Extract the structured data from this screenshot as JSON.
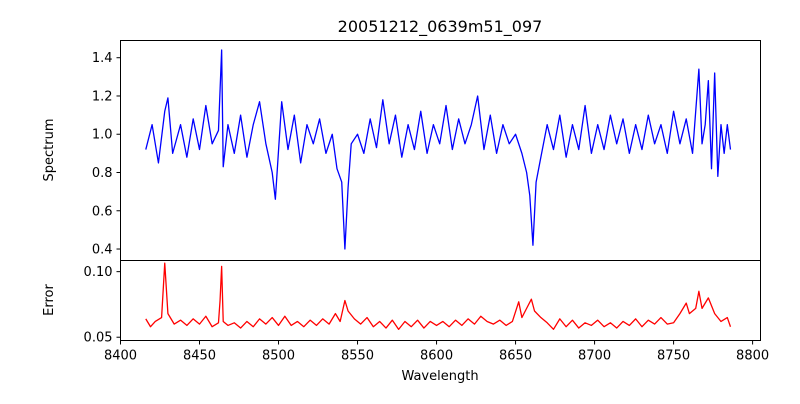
{
  "chart_data": [
    {
      "type": "line",
      "title": "20051212_0639m51_097",
      "ylabel": "Spectrum",
      "xlim": [
        8400,
        8805
      ],
      "ylim": [
        0.34,
        1.49
      ],
      "yticks": [
        "0.4",
        "0.6",
        "0.8",
        "1.0",
        "1.2",
        "1.4"
      ],
      "ytick_values": [
        0.4,
        0.6,
        0.8,
        1.0,
        1.2,
        1.4
      ],
      "series": [
        {
          "color": "#0000ff",
          "points": [
            [
              8416,
              0.92
            ],
            [
              8420,
              1.05
            ],
            [
              8424,
              0.85
            ],
            [
              8428,
              1.12
            ],
            [
              8430,
              1.19
            ],
            [
              8433,
              0.9
            ],
            [
              8438,
              1.05
            ],
            [
              8442,
              0.88
            ],
            [
              8446,
              1.08
            ],
            [
              8450,
              0.92
            ],
            [
              8454,
              1.15
            ],
            [
              8458,
              0.95
            ],
            [
              8462,
              1.02
            ],
            [
              8464,
              1.44
            ],
            [
              8465,
              0.83
            ],
            [
              8468,
              1.05
            ],
            [
              8472,
              0.9
            ],
            [
              8476,
              1.1
            ],
            [
              8480,
              0.88
            ],
            [
              8484,
              1.05
            ],
            [
              8488,
              1.17
            ],
            [
              8492,
              0.95
            ],
            [
              8496,
              0.8
            ],
            [
              8498,
              0.66
            ],
            [
              8502,
              1.17
            ],
            [
              8506,
              0.92
            ],
            [
              8510,
              1.1
            ],
            [
              8514,
              0.85
            ],
            [
              8518,
              1.05
            ],
            [
              8522,
              0.95
            ],
            [
              8526,
              1.08
            ],
            [
              8530,
              0.9
            ],
            [
              8534,
              1.0
            ],
            [
              8537,
              0.82
            ],
            [
              8540,
              0.75
            ],
            [
              8542,
              0.4
            ],
            [
              8544,
              0.72
            ],
            [
              8546,
              0.95
            ],
            [
              8550,
              1.0
            ],
            [
              8554,
              0.9
            ],
            [
              8558,
              1.08
            ],
            [
              8562,
              0.93
            ],
            [
              8566,
              1.18
            ],
            [
              8570,
              0.95
            ],
            [
              8574,
              1.1
            ],
            [
              8578,
              0.88
            ],
            [
              8582,
              1.05
            ],
            [
              8586,
              0.92
            ],
            [
              8590,
              1.12
            ],
            [
              8594,
              0.9
            ],
            [
              8598,
              1.05
            ],
            [
              8602,
              0.95
            ],
            [
              8606,
              1.15
            ],
            [
              8610,
              0.92
            ],
            [
              8614,
              1.08
            ],
            [
              8618,
              0.95
            ],
            [
              8622,
              1.05
            ],
            [
              8626,
              1.2
            ],
            [
              8630,
              0.92
            ],
            [
              8634,
              1.1
            ],
            [
              8638,
              0.9
            ],
            [
              8642,
              1.05
            ],
            [
              8646,
              0.95
            ],
            [
              8650,
              1.0
            ],
            [
              8654,
              0.9
            ],
            [
              8657,
              0.8
            ],
            [
              8659,
              0.68
            ],
            [
              8661,
              0.42
            ],
            [
              8663,
              0.75
            ],
            [
              8666,
              0.88
            ],
            [
              8670,
              1.05
            ],
            [
              8674,
              0.92
            ],
            [
              8678,
              1.1
            ],
            [
              8682,
              0.88
            ],
            [
              8686,
              1.05
            ],
            [
              8690,
              0.92
            ],
            [
              8694,
              1.15
            ],
            [
              8698,
              0.9
            ],
            [
              8702,
              1.05
            ],
            [
              8706,
              0.92
            ],
            [
              8710,
              1.1
            ],
            [
              8714,
              0.95
            ],
            [
              8718,
              1.08
            ],
            [
              8722,
              0.9
            ],
            [
              8726,
              1.05
            ],
            [
              8730,
              0.92
            ],
            [
              8734,
              1.1
            ],
            [
              8738,
              0.95
            ],
            [
              8742,
              1.05
            ],
            [
              8746,
              0.9
            ],
            [
              8750,
              1.12
            ],
            [
              8754,
              0.95
            ],
            [
              8758,
              1.08
            ],
            [
              8762,
              0.9
            ],
            [
              8766,
              1.34
            ],
            [
              8768,
              0.95
            ],
            [
              8770,
              1.05
            ],
            [
              8772,
              1.28
            ],
            [
              8774,
              0.82
            ],
            [
              8776,
              1.32
            ],
            [
              8778,
              0.78
            ],
            [
              8780,
              1.05
            ],
            [
              8782,
              0.9
            ],
            [
              8784,
              1.05
            ],
            [
              8786,
              0.92
            ]
          ]
        }
      ]
    },
    {
      "type": "line",
      "xlabel": "Wavelength",
      "ylabel": "Error",
      "xlim": [
        8400,
        8805
      ],
      "ylim": [
        0.0475,
        0.1085
      ],
      "xticks": [
        "8400",
        "8450",
        "8500",
        "8550",
        "8600",
        "8650",
        "8700",
        "8750",
        "8800"
      ],
      "xtick_values": [
        8400,
        8450,
        8500,
        8550,
        8600,
        8650,
        8700,
        8750,
        8800
      ],
      "yticks": [
        "0.05",
        "0.10"
      ],
      "ytick_values": [
        0.05,
        0.1
      ],
      "series": [
        {
          "color": "#ff0000",
          "points": [
            [
              8416,
              0.064
            ],
            [
              8419,
              0.058
            ],
            [
              8422,
              0.062
            ],
            [
              8426,
              0.065
            ],
            [
              8428,
              0.1065
            ],
            [
              8430,
              0.068
            ],
            [
              8434,
              0.06
            ],
            [
              8438,
              0.063
            ],
            [
              8442,
              0.059
            ],
            [
              8446,
              0.064
            ],
            [
              8450,
              0.06
            ],
            [
              8454,
              0.066
            ],
            [
              8458,
              0.058
            ],
            [
              8462,
              0.061
            ],
            [
              8463,
              0.078
            ],
            [
              8464,
              0.104
            ],
            [
              8465,
              0.062
            ],
            [
              8468,
              0.059
            ],
            [
              8472,
              0.061
            ],
            [
              8476,
              0.057
            ],
            [
              8480,
              0.062
            ],
            [
              8484,
              0.058
            ],
            [
              8488,
              0.064
            ],
            [
              8492,
              0.06
            ],
            [
              8496,
              0.065
            ],
            [
              8500,
              0.059
            ],
            [
              8504,
              0.066
            ],
            [
              8508,
              0.059
            ],
            [
              8512,
              0.062
            ],
            [
              8516,
              0.058
            ],
            [
              8520,
              0.063
            ],
            [
              8524,
              0.059
            ],
            [
              8528,
              0.064
            ],
            [
              8532,
              0.06
            ],
            [
              8536,
              0.068
            ],
            [
              8539,
              0.062
            ],
            [
              8542,
              0.078
            ],
            [
              8544,
              0.07
            ],
            [
              8548,
              0.064
            ],
            [
              8552,
              0.06
            ],
            [
              8556,
              0.065
            ],
            [
              8560,
              0.058
            ],
            [
              8564,
              0.062
            ],
            [
              8568,
              0.057
            ],
            [
              8572,
              0.063
            ],
            [
              8576,
              0.056
            ],
            [
              8580,
              0.062
            ],
            [
              8584,
              0.058
            ],
            [
              8588,
              0.063
            ],
            [
              8592,
              0.057
            ],
            [
              8596,
              0.062
            ],
            [
              8600,
              0.059
            ],
            [
              8604,
              0.062
            ],
            [
              8608,
              0.058
            ],
            [
              8612,
              0.063
            ],
            [
              8616,
              0.059
            ],
            [
              8620,
              0.064
            ],
            [
              8624,
              0.06
            ],
            [
              8628,
              0.066
            ],
            [
              8632,
              0.062
            ],
            [
              8636,
              0.06
            ],
            [
              8640,
              0.063
            ],
            [
              8644,
              0.059
            ],
            [
              8648,
              0.062
            ],
            [
              8652,
              0.077
            ],
            [
              8654,
              0.065
            ],
            [
              8657,
              0.072
            ],
            [
              8660,
              0.079
            ],
            [
              8662,
              0.07
            ],
            [
              8666,
              0.065
            ],
            [
              8670,
              0.061
            ],
            [
              8674,
              0.056
            ],
            [
              8678,
              0.064
            ],
            [
              8682,
              0.058
            ],
            [
              8686,
              0.063
            ],
            [
              8690,
              0.057
            ],
            [
              8694,
              0.061
            ],
            [
              8698,
              0.059
            ],
            [
              8702,
              0.063
            ],
            [
              8706,
              0.058
            ],
            [
              8710,
              0.061
            ],
            [
              8714,
              0.057
            ],
            [
              8718,
              0.062
            ],
            [
              8722,
              0.059
            ],
            [
              8726,
              0.064
            ],
            [
              8730,
              0.058
            ],
            [
              8734,
              0.063
            ],
            [
              8738,
              0.06
            ],
            [
              8742,
              0.065
            ],
            [
              8746,
              0.06
            ],
            [
              8750,
              0.061
            ],
            [
              8754,
              0.068
            ],
            [
              8758,
              0.076
            ],
            [
              8760,
              0.068
            ],
            [
              8764,
              0.072
            ],
            [
              8766,
              0.085
            ],
            [
              8768,
              0.072
            ],
            [
              8772,
              0.08
            ],
            [
              8776,
              0.068
            ],
            [
              8780,
              0.062
            ],
            [
              8784,
              0.065
            ],
            [
              8786,
              0.058
            ]
          ]
        }
      ]
    }
  ]
}
